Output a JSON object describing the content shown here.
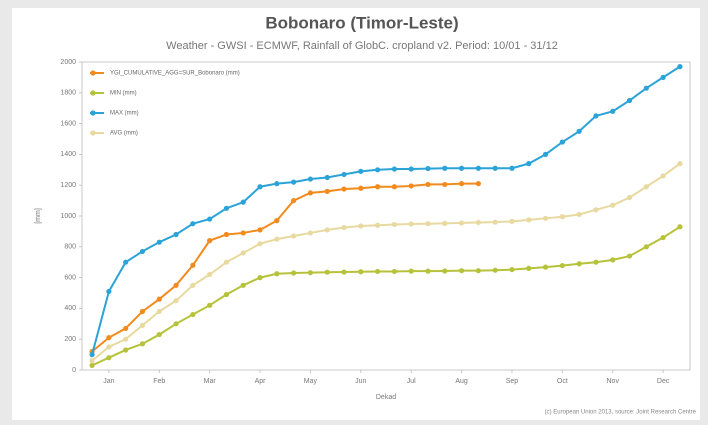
{
  "chart_data": {
    "type": "line",
    "title": "Bobonaro (Timor-Leste)",
    "subtitle": "Weather - GWSI - ECMWF, Rainfall of GlobC. cropland v2. Period: 10/01 - 31/12",
    "y_label": "[mm]",
    "x_label": "Dekad",
    "footer": "(c) European Union 2013, source: Joint Research Centre",
    "x": [
      1,
      2,
      3,
      4,
      5,
      6,
      7,
      8,
      9,
      10,
      11,
      12,
      13,
      14,
      15,
      16,
      17,
      18,
      19,
      20,
      21,
      22,
      23,
      24,
      25,
      26,
      27,
      28,
      29,
      30,
      31,
      32,
      33,
      34,
      35,
      36
    ],
    "xlim": [
      0.4,
      36.6
    ],
    "xticks": [
      {
        "value": 2,
        "label": "Jan"
      },
      {
        "value": 5,
        "label": "Feb"
      },
      {
        "value": 8,
        "label": "Mar"
      },
      {
        "value": 11,
        "label": "Apr"
      },
      {
        "value": 14,
        "label": "May"
      },
      {
        "value": 17,
        "label": "Jun"
      },
      {
        "value": 20,
        "label": "Jul"
      },
      {
        "value": 23,
        "label": "Aug"
      },
      {
        "value": 26,
        "label": "Sep"
      },
      {
        "value": 29,
        "label": "Oct"
      },
      {
        "value": 32,
        "label": "Nov"
      },
      {
        "value": 35,
        "label": "Dec"
      }
    ],
    "ylim": [
      0,
      2000
    ],
    "yticks": [
      0,
      200,
      400,
      600,
      800,
      1000,
      1200,
      1400,
      1600,
      1800,
      2000
    ],
    "legend": "top-left",
    "series": [
      {
        "name": "YGI_CUMULATIVE_AGG=SUR_Bobonaro (mm)",
        "color": "#f28a1e",
        "values": [
          120,
          210,
          270,
          380,
          460,
          550,
          680,
          840,
          880,
          890,
          910,
          970,
          1100,
          1150,
          1160,
          1175,
          1180,
          1190,
          1190,
          1195,
          1205,
          1205,
          1210,
          1210,
          null,
          null,
          null,
          null,
          null,
          null,
          null,
          null,
          null,
          null,
          null,
          null
        ]
      },
      {
        "name": "MIN (mm)",
        "color": "#b5c23a",
        "values": [
          30,
          80,
          130,
          170,
          230,
          300,
          360,
          420,
          490,
          550,
          600,
          625,
          630,
          632,
          635,
          636,
          638,
          640,
          640,
          642,
          642,
          643,
          645,
          645,
          648,
          652,
          660,
          668,
          678,
          690,
          700,
          715,
          740,
          800,
          860,
          930
        ]
      },
      {
        "name": "MAX (mm)",
        "color": "#2aa3d8",
        "values": [
          100,
          510,
          700,
          770,
          830,
          880,
          950,
          980,
          1050,
          1090,
          1190,
          1210,
          1220,
          1240,
          1250,
          1270,
          1290,
          1300,
          1305,
          1305,
          1308,
          1310,
          1310,
          1310,
          1310,
          1310,
          1340,
          1400,
          1480,
          1550,
          1650,
          1680,
          1750,
          1830,
          1900,
          1970
        ]
      },
      {
        "name": "AVG (mm)",
        "color": "#e8d9a0",
        "values": [
          60,
          150,
          200,
          290,
          380,
          450,
          550,
          620,
          700,
          760,
          820,
          850,
          870,
          890,
          910,
          925,
          935,
          940,
          945,
          948,
          950,
          952,
          955,
          958,
          960,
          965,
          975,
          985,
          995,
          1010,
          1040,
          1070,
          1120,
          1190,
          1260,
          1340
        ]
      }
    ]
  }
}
